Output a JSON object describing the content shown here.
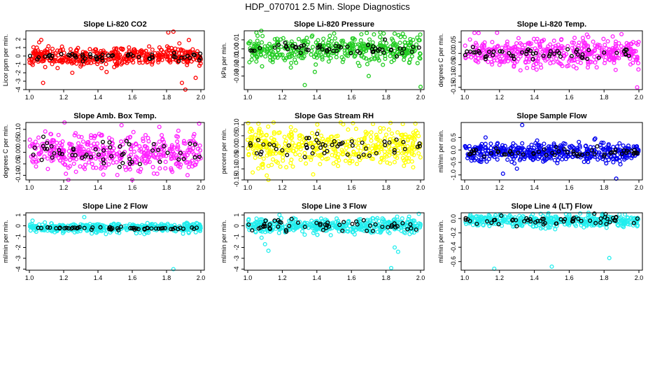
{
  "main_title": "HDP_070701  2.5 Min. Slope Diagnostics",
  "chart_data": [
    {
      "type": "scatter",
      "title": "Slope Li-820 CO2",
      "ylabel": "Licor ppm per min.",
      "xlabel": "",
      "xlim": [
        1.0,
        2.0
      ],
      "xticks": [
        "1.0",
        "1.2",
        "1.4",
        "1.6",
        "1.8",
        "2.0"
      ],
      "ylim": [
        -4,
        3
      ],
      "yticks": [
        -4,
        -3,
        -2,
        -1,
        0,
        1,
        2
      ],
      "ytick_labels": [
        "-4",
        "-3",
        "-2",
        "-1",
        "0",
        "1",
        "2"
      ],
      "color": "#ff0000",
      "center": -0.05,
      "spread": 0.55,
      "black_spread": 0.25,
      "extras": [
        [
          1.08,
          -3.2
        ],
        [
          1.81,
          2.8
        ],
        [
          1.84,
          2.9
        ],
        [
          1.89,
          -3.2
        ],
        [
          1.91,
          -4.0
        ],
        [
          1.93,
          1.9
        ],
        [
          1.97,
          -2.6
        ],
        [
          1.25,
          -2.0
        ],
        [
          1.45,
          -1.9
        ]
      ],
      "seed": 11
    },
    {
      "type": "scatter",
      "title": "Slope Li-820 Pressure",
      "ylabel": "kPa per min.",
      "xlabel": "",
      "xlim": [
        1.0,
        2.0
      ],
      "xticks": [
        "1.0",
        "1.2",
        "1.4",
        "1.6",
        "1.8",
        "2.0"
      ],
      "ylim": [
        -0.045,
        0.02
      ],
      "yticks": [
        -0.04,
        -0.03,
        -0.02,
        -0.01,
        0,
        0.01
      ],
      "ytick_labels": [
        "-0.03",
        "-0.02",
        "-0.01",
        "0.00",
        "0.01"
      ],
      "ytick_values": [
        -0.03,
        -0.02,
        -0.01,
        0.0,
        0.01
      ],
      "color": "#22cc22",
      "center": 0.0,
      "spread": 0.007,
      "black_spread": 0.003,
      "extras": [
        [
          1.33,
          -0.04
        ],
        [
          1.7,
          -0.03
        ],
        [
          2.0,
          -0.042
        ],
        [
          1.05,
          0.018
        ],
        [
          1.5,
          0.017
        ]
      ],
      "seed": 23
    },
    {
      "type": "scatter",
      "title": "Slope Li-820 Temp.",
      "ylabel": "degrees C per min.",
      "xlabel": "",
      "xlim": [
        1.0,
        2.0
      ],
      "xticks": [
        "1.0",
        "1.2",
        "1.4",
        "1.6",
        "1.8",
        "2.0"
      ],
      "ylim": [
        -0.16,
        0.1
      ],
      "yticks": [
        -0.15,
        -0.1,
        -0.05,
        0,
        0.05
      ],
      "ytick_labels": [
        "-0.15",
        "-0.10",
        "-0.05",
        "0.00",
        "0.05"
      ],
      "color": "#ff22ff",
      "center": 0.0,
      "spread": 0.03,
      "black_spread": 0.012,
      "extras": [
        [
          1.99,
          -0.15
        ],
        [
          1.08,
          0.09
        ],
        [
          1.9,
          0.085
        ]
      ],
      "seed": 37
    },
    {
      "type": "scatter",
      "title": "Slope Amb. Box Temp.",
      "ylabel": "degrees C per min.",
      "xlabel": "",
      "xlim": [
        1.0,
        2.0
      ],
      "xticks": [
        "1.0",
        "1.2",
        "1.4",
        "1.6",
        "1.8",
        "2.0"
      ],
      "ylim": [
        -0.12,
        0.13
      ],
      "yticks": [
        -0.1,
        -0.05,
        0,
        0.05,
        0.1
      ],
      "ytick_labels": [
        "-0.10",
        "-0.05",
        "0.00",
        "0.05",
        "0.10"
      ],
      "color": "#ff22ff",
      "center": 0.0,
      "spread": 0.04,
      "black_spread": 0.03,
      "extras": [
        [
          1.6,
          -0.12
        ],
        [
          1.99,
          0.125
        ]
      ],
      "seed": 51
    },
    {
      "type": "scatter",
      "title": "Slope Gas Stream RH",
      "ylabel": "percent per min.",
      "xlabel": "",
      "xlim": [
        1.0,
        2.0
      ],
      "xticks": [
        "1.0",
        "1.2",
        "1.4",
        "1.6",
        "1.8",
        "2.0"
      ],
      "ylim": [
        -0.15,
        0.11
      ],
      "yticks": [
        -0.15,
        -0.1,
        -0.05,
        0,
        0.05,
        0.1
      ],
      "ytick_labels": [
        "-0.15",
        "-0.10",
        "-0.05",
        "0.00",
        "0.05",
        "0.10"
      ],
      "color": "#ffff00",
      "center": 0.0,
      "spread": 0.04,
      "black_spread": 0.025,
      "extras": [
        [
          1.12,
          -0.15
        ],
        [
          1.97,
          0.105
        ]
      ],
      "seed": 67
    },
    {
      "type": "scatter",
      "title": "Slope Sample Flow",
      "ylabel": "ml/min per min.",
      "xlabel": "",
      "xlim": [
        1.0,
        2.0
      ],
      "xticks": [
        "1.0",
        "1.2",
        "1.4",
        "1.6",
        "1.8",
        "2.0"
      ],
      "ylim": [
        -1.2,
        1.1
      ],
      "yticks": [
        -1,
        -0.5,
        0,
        0.5
      ],
      "ytick_labels": [
        "-1.0",
        "-0.5",
        "0.0",
        "0.5"
      ],
      "color": "#0000ee",
      "center": -0.1,
      "spread": 0.18,
      "black_spread": 0.1,
      "extras": [
        [
          1.33,
          1.0
        ],
        [
          1.12,
          0.5
        ],
        [
          1.22,
          -0.95
        ],
        [
          1.87,
          -1.15
        ],
        [
          1.3,
          -0.75
        ]
      ],
      "seed": 79
    },
    {
      "type": "scatter",
      "title": "Slope Line 2 Flow",
      "ylabel": "ml/min per min.",
      "xlabel": "",
      "xlim": [
        1.0,
        2.0
      ],
      "xticks": [
        "1.0",
        "1.2",
        "1.4",
        "1.6",
        "1.8",
        "2.0"
      ],
      "ylim": [
        -4.1,
        1.2
      ],
      "yticks": [
        -4,
        -3,
        -2,
        -1,
        0,
        1
      ],
      "ytick_labels": [
        "-4",
        "-3",
        "-2",
        "-1",
        "0",
        "1"
      ],
      "color": "#22eeee",
      "center": -0.2,
      "spread": 0.22,
      "black_spread": 0.08,
      "extras": [
        [
          1.84,
          -4.0
        ],
        [
          1.32,
          0.8
        ]
      ],
      "seed": 97
    },
    {
      "type": "scatter",
      "title": "Slope Line 3 Flow",
      "ylabel": "ml/min per min.",
      "xlabel": "",
      "xlim": [
        1.0,
        2.0
      ],
      "xticks": [
        "1.0",
        "1.2",
        "1.4",
        "1.6",
        "1.8",
        "2.0"
      ],
      "ylim": [
        -4.1,
        1.2
      ],
      "yticks": [
        -4,
        -3,
        -2,
        -1,
        0,
        1
      ],
      "ytick_labels": [
        "-4",
        "-3",
        "-2",
        "-1",
        "0",
        "1"
      ],
      "color": "#22eeee",
      "center": 0.0,
      "spread": 0.35,
      "black_spread": 0.3,
      "extras": [
        [
          1.12,
          -2.3
        ],
        [
          1.1,
          -1.7
        ],
        [
          1.08,
          -1.1
        ],
        [
          1.83,
          -3.9
        ],
        [
          1.87,
          -2.4
        ],
        [
          1.85,
          -2.0
        ],
        [
          1.99,
          1.1
        ]
      ],
      "seed": 113
    },
    {
      "type": "scatter",
      "title": "Slope Line 4 (LT) Flow",
      "ylabel": "ml/min per min.",
      "xlabel": "",
      "xlim": [
        1.0,
        2.0
      ],
      "xticks": [
        "1.0",
        "1.2",
        "1.4",
        "1.6",
        "1.8",
        "2.0"
      ],
      "ylim": [
        -0.72,
        0.08
      ],
      "yticks": [
        -0.6,
        -0.4,
        -0.2,
        0
      ],
      "ytick_labels": [
        "-0.6",
        "-0.4",
        "-0.2",
        "0.0"
      ],
      "color": "#22eeee",
      "center": -0.03,
      "spread": 0.04,
      "black_spread": 0.03,
      "extras": [
        [
          1.17,
          -0.7
        ],
        [
          1.5,
          -0.67
        ],
        [
          1.83,
          -0.55
        ],
        [
          1.41,
          -0.1
        ]
      ],
      "seed": 131
    }
  ]
}
